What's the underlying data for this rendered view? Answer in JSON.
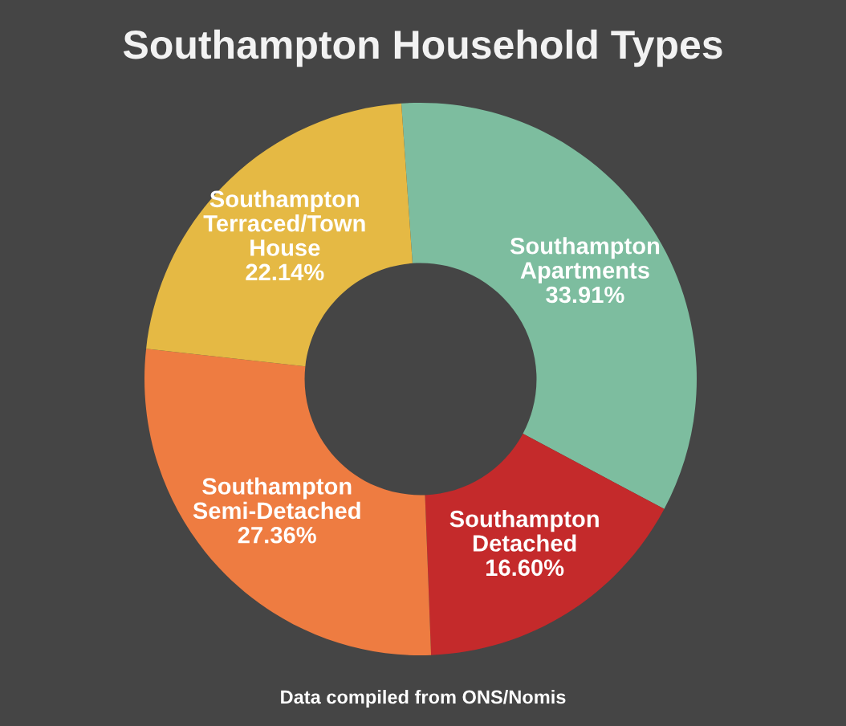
{
  "chart_data": {
    "type": "donut",
    "title": "Southampton Household Types",
    "categories": [
      "Southampton Apartments",
      "Southampton Detached",
      "Southampton Semi-Detached",
      "Southampton Terraced/Town House"
    ],
    "values": [
      33.91,
      16.6,
      27.36,
      22.14
    ],
    "colors": [
      "#7dbd9f",
      "#c42a2b",
      "#ee7c41",
      "#e5b944"
    ],
    "value_labels": [
      "33.91%",
      "16.60%",
      "27.36%",
      "22.14%"
    ],
    "annotations": [
      "Data compiled from ONS/Nomis"
    ]
  }
}
